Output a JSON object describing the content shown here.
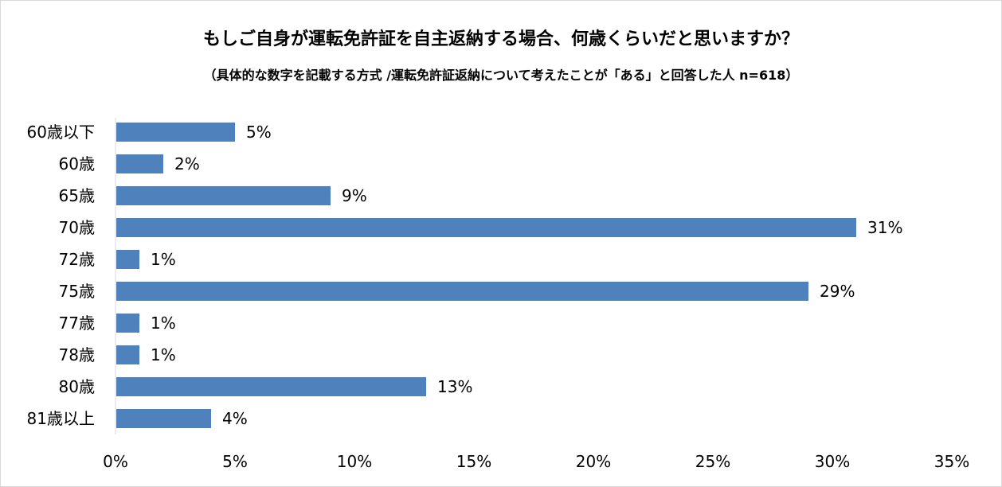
{
  "chart_data": {
    "type": "bar",
    "orientation": "horizontal",
    "title": "もしご自身が運転免許証を自主返納する場合、何歳くらいだと思いますか？",
    "subtitle": "（具体的な数字を記載する方式 /運転免許証返納について考えたことが「ある」と回答した人 n=618）",
    "categories": [
      "60歳以下",
      "60歳",
      "65歳",
      "70歳",
      "72歳",
      "75歳",
      "77歳",
      "78歳",
      "80歳",
      "81歳以上"
    ],
    "values": [
      5,
      2,
      9,
      31,
      1,
      29,
      1,
      1,
      13,
      4
    ],
    "value_labels": [
      "5%",
      "2%",
      "9%",
      "31%",
      "1%",
      "29%",
      "1%",
      "1%",
      "13%",
      "4%"
    ],
    "xlim": [
      0,
      35
    ],
    "xticks": [
      0,
      5,
      10,
      15,
      20,
      25,
      30,
      35
    ],
    "xtick_labels": [
      "0%",
      "5%",
      "10%",
      "15%",
      "20%",
      "25%",
      "30%",
      "35%"
    ],
    "bar_color": "#4f81bd",
    "grid": false,
    "legend": "none"
  }
}
